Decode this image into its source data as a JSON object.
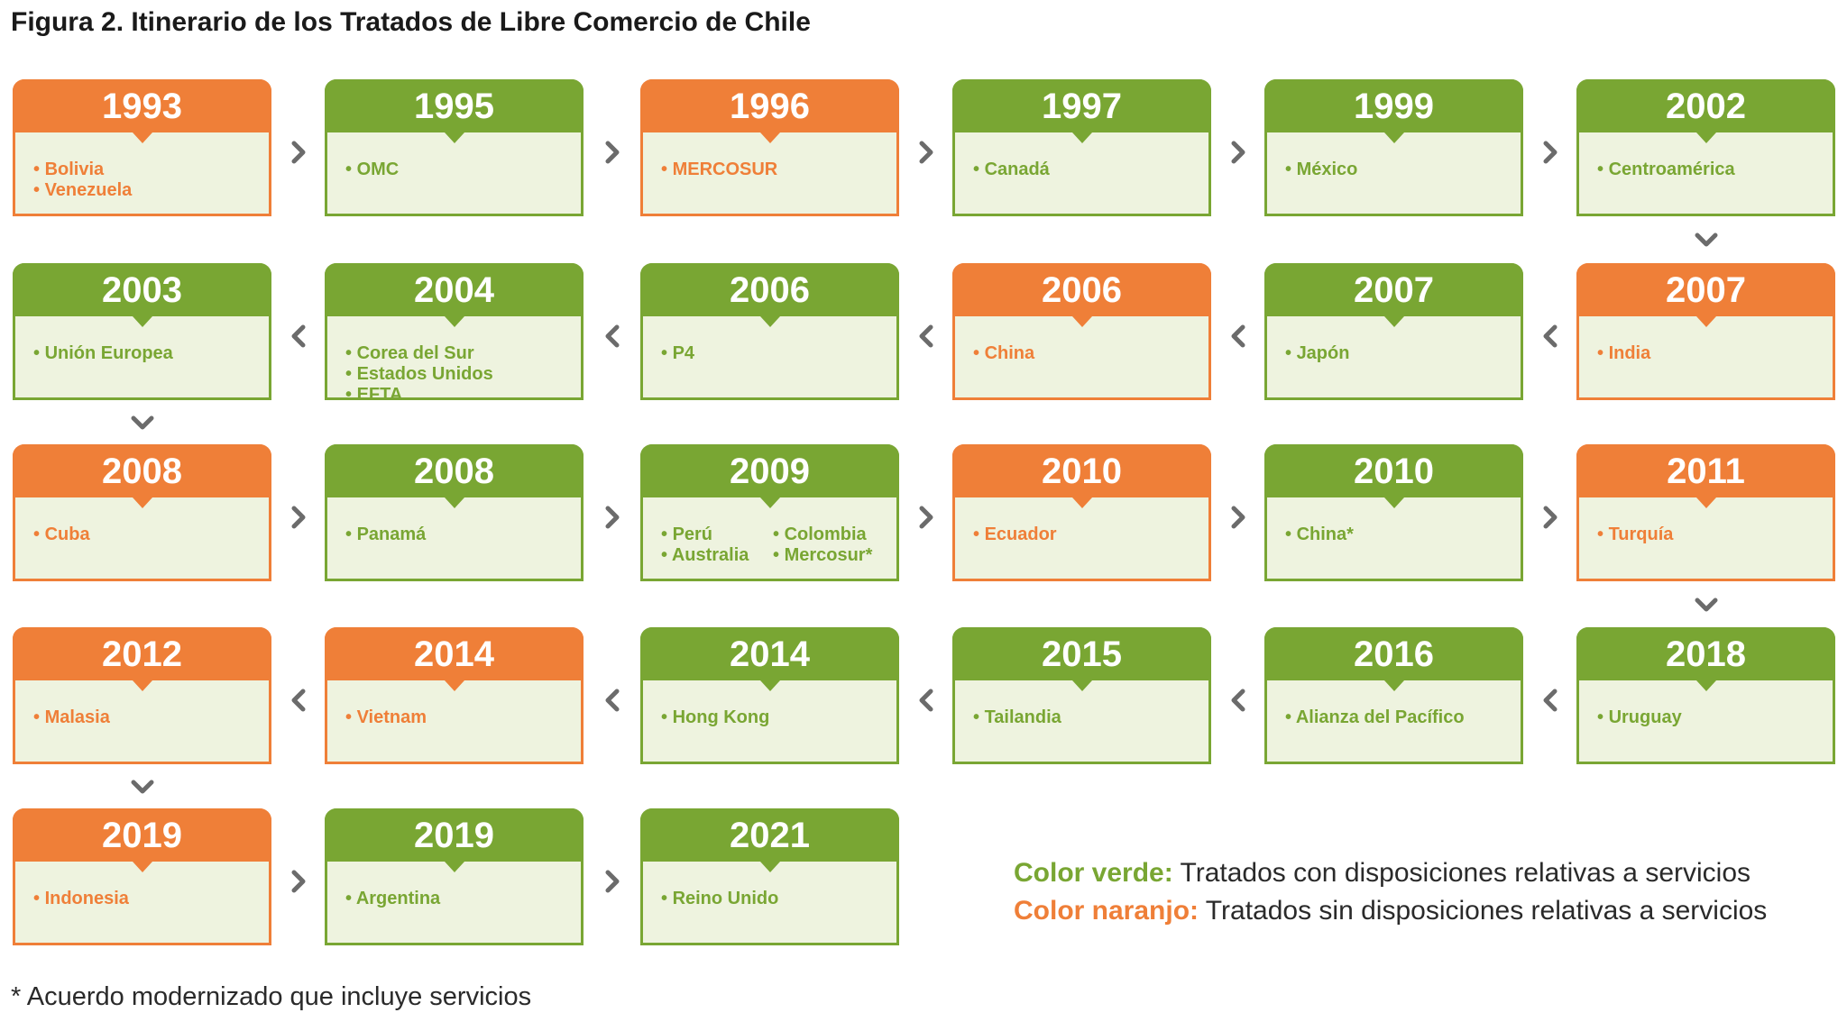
{
  "title": "Figura 2. Itinerario de los Tratados de Libre Comercio de Chile",
  "colors": {
    "green": "#79a633",
    "orange": "#ef7f38",
    "fill": "#eef3df",
    "arrow": "#6b6b6b"
  },
  "cards": [
    {
      "year": "1993",
      "color": "orange",
      "items": [
        "Bolivia",
        "Venezuela"
      ]
    },
    {
      "year": "1995",
      "color": "green",
      "items": [
        "OMC"
      ]
    },
    {
      "year": "1996",
      "color": "orange",
      "items": [
        "MERCOSUR"
      ]
    },
    {
      "year": "1997",
      "color": "green",
      "items": [
        "Canadá"
      ]
    },
    {
      "year": "1999",
      "color": "green",
      "items": [
        "México"
      ]
    },
    {
      "year": "2002",
      "color": "green",
      "items": [
        "Centroamérica"
      ]
    },
    {
      "year": "2007",
      "color": "orange",
      "items": [
        "India"
      ]
    },
    {
      "year": "2007",
      "color": "green",
      "items": [
        "Japón"
      ]
    },
    {
      "year": "2006",
      "color": "orange",
      "items": [
        "China"
      ]
    },
    {
      "year": "2006",
      "color": "green",
      "items": [
        "P4"
      ]
    },
    {
      "year": "2004",
      "color": "green",
      "items": [
        "Corea del Sur",
        "Estados Unidos",
        "EFTA"
      ]
    },
    {
      "year": "2003",
      "color": "green",
      "items": [
        "Unión Europea"
      ]
    },
    {
      "year": "2008",
      "color": "orange",
      "items": [
        "Cuba"
      ]
    },
    {
      "year": "2008",
      "color": "green",
      "items": [
        "Panamá"
      ]
    },
    {
      "year": "2009",
      "color": "green",
      "columns": true,
      "items": [
        "Perú",
        "Colombia",
        "Australia",
        "Mercosur*"
      ]
    },
    {
      "year": "2010",
      "color": "orange",
      "items": [
        "Ecuador"
      ]
    },
    {
      "year": "2010",
      "color": "green",
      "items": [
        "China*"
      ]
    },
    {
      "year": "2011",
      "color": "orange",
      "items": [
        "Turquía"
      ]
    },
    {
      "year": "2018",
      "color": "green",
      "items": [
        "Uruguay"
      ]
    },
    {
      "year": "2016",
      "color": "green",
      "items": [
        "Alianza del Pacífico"
      ]
    },
    {
      "year": "2015",
      "color": "green",
      "items": [
        "Tailandia"
      ]
    },
    {
      "year": "2014",
      "color": "green",
      "items": [
        "Hong Kong"
      ]
    },
    {
      "year": "2014",
      "color": "orange",
      "items": [
        "Vietnam"
      ]
    },
    {
      "year": "2012",
      "color": "orange",
      "items": [
        "Malasia"
      ]
    },
    {
      "year": "2019",
      "color": "orange",
      "items": [
        "Indonesia"
      ]
    },
    {
      "year": "2019",
      "color": "green",
      "items": [
        "Argentina"
      ]
    },
    {
      "year": "2021",
      "color": "green",
      "items": [
        "Reino Unido"
      ]
    }
  ],
  "legend": {
    "green_label": "Color verde:",
    "green_text": " Tratados con disposiciones relativas a servicios",
    "orange_label": "Color naranjo:",
    "orange_text": " Tratados sin disposiciones relativas a servicios"
  },
  "footnote": "* Acuerdo modernizado que incluye servicios"
}
